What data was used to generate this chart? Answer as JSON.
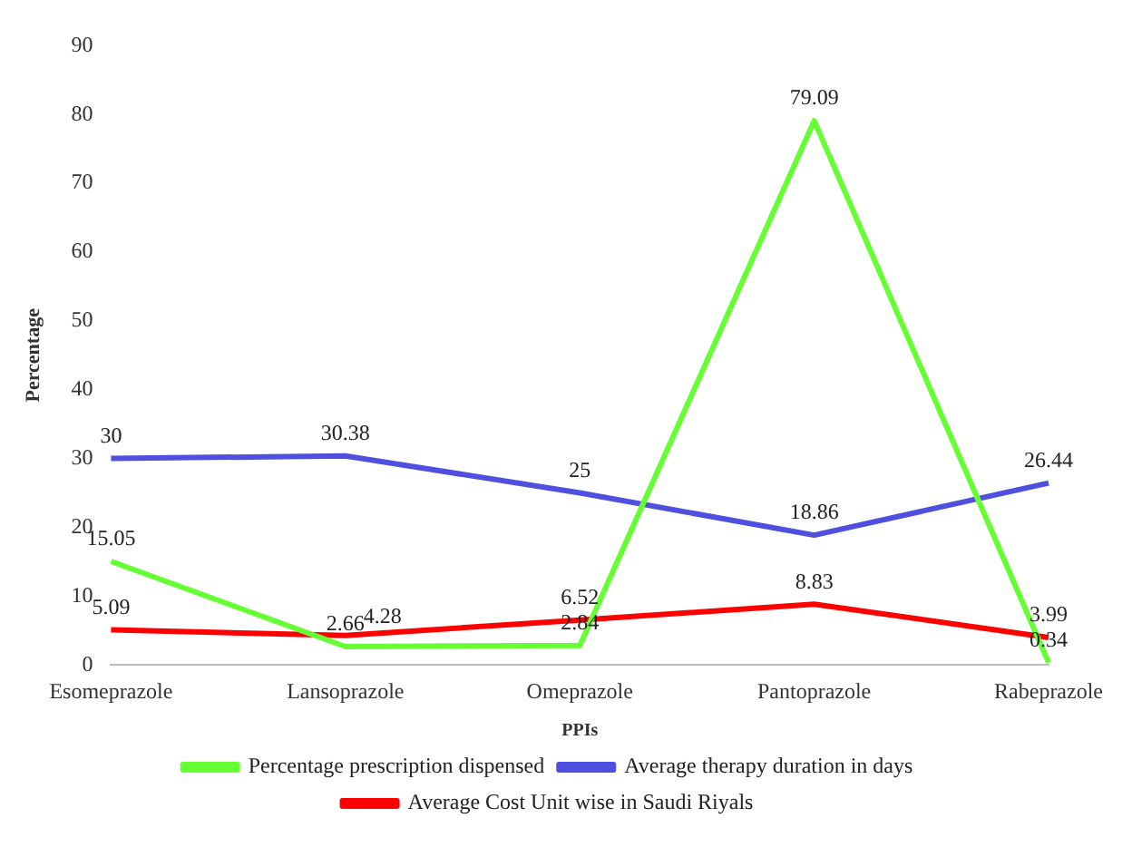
{
  "chart_data": {
    "type": "line",
    "xlabel": "PPIs",
    "ylabel": "Percentage",
    "categories": [
      "Esomeprazole",
      "Lansoprazole",
      "Omeprazole",
      "Pantoprazole",
      "Rabeprazole"
    ],
    "series": [
      {
        "name": "Percentage prescription dispensed",
        "color": "#66ff33",
        "values": [
          15.05,
          2.66,
          2.84,
          79.09,
          0.34
        ]
      },
      {
        "name": "Average therapy duration in days",
        "color": "#4f4fe0",
        "values": [
          30,
          30.38,
          25,
          18.86,
          26.44
        ]
      },
      {
        "name": "Average Cost Unit wise in Saudi Riyals",
        "color": "#ff0000",
        "values": [
          5.09,
          4.28,
          6.52,
          8.83,
          3.99
        ]
      }
    ],
    "ylim": [
      0,
      90
    ],
    "yticks": [
      0,
      10,
      20,
      30,
      40,
      50,
      60,
      70,
      80,
      90
    ],
    "grid": false,
    "legend": "bottom",
    "marker": "none",
    "line_style": "solid",
    "data_labels": true
  }
}
